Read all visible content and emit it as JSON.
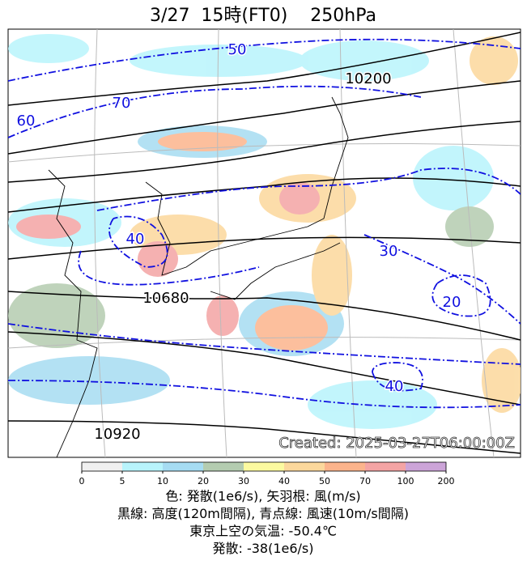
{
  "title": "3/27  15時(FT0)    250hPa",
  "stamp": "Created: 2025-03-27T06:00:00Z",
  "contour_labels": [
    {
      "value": 50,
      "color": "#1010e0"
    },
    {
      "value": 10200,
      "color": "#000000"
    },
    {
      "value": 70,
      "color": "#1010e0"
    },
    {
      "value": 60,
      "color": "#1010e0"
    },
    {
      "value": 40,
      "color": "#1010e0"
    },
    {
      "value": 30,
      "color": "#1010e0"
    },
    {
      "value": 10680,
      "color": "#000000"
    },
    {
      "value": 20,
      "color": "#1010e0"
    },
    {
      "value": 40,
      "color": "#1010e0"
    },
    {
      "value": 10920,
      "color": "#000000"
    }
  ],
  "colorbar": {
    "ticks": [
      0,
      5,
      10,
      20,
      30,
      40,
      50,
      70,
      100,
      200
    ],
    "colors": [
      "#f0f0f0",
      "#b8f4fc",
      "#a6dcf2",
      "#b4ccb0",
      "#fcfaa0",
      "#fcd89c",
      "#fcb48c",
      "#f4a4a4",
      "#cca4d8"
    ]
  },
  "captions": [
    "色: 発散(1e6/s), 矢羽根: 風(m/s)",
    "黒線: 高度(120m間隔), 青点線: 風速(10m/s間隔)",
    "東京上空の気温: -50.4℃",
    "発散: -38(1e6/s)"
  ]
}
